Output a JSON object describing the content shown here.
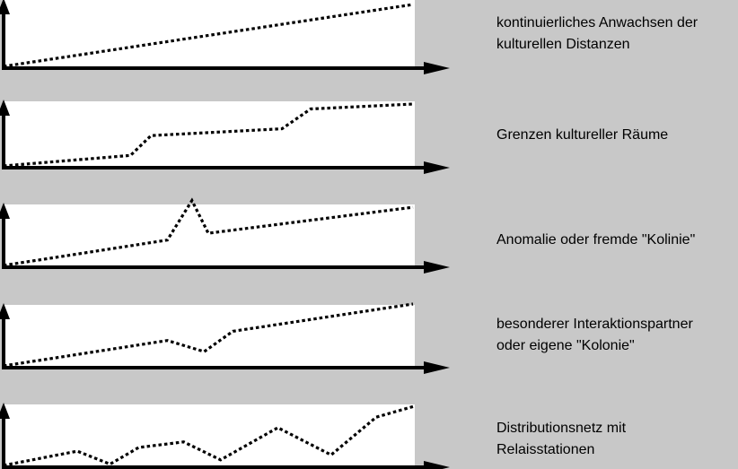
{
  "panels": [
    {
      "caption_lines": [
        "kontinuierliches Anwachsen der",
        "kulturellen Distanzen"
      ],
      "profile": [
        [
          0,
          0
        ],
        [
          1,
          1
        ]
      ]
    },
    {
      "caption_lines": [
        "Grenzen kultureller Räume"
      ],
      "profile": [
        [
          0,
          0
        ],
        [
          0.31,
          0.17
        ],
        [
          0.36,
          0.49
        ],
        [
          0.68,
          0.6
        ],
        [
          0.75,
          0.92
        ],
        [
          1,
          1
        ]
      ]
    },
    {
      "caption_lines": [
        "Anomalie oder fremde \"Kolinie\""
      ],
      "profile": [
        [
          0,
          0
        ],
        [
          0.4,
          0.41
        ],
        [
          0.46,
          1.05
        ],
        [
          0.5,
          0.52
        ],
        [
          1,
          0.94
        ]
      ]
    },
    {
      "caption_lines": [
        "besonderer Interaktionspartner",
        "oder eigene \"Kolonie\""
      ],
      "profile": [
        [
          0,
          0
        ],
        [
          0.4,
          0.41
        ],
        [
          0.49,
          0.23
        ],
        [
          0.56,
          0.56
        ],
        [
          1,
          1
        ]
      ]
    },
    {
      "caption_lines": [
        "Distributionsnetz mit",
        "Relaisstationen"
      ],
      "profile": [
        [
          0,
          0
        ],
        [
          0.18,
          0.23
        ],
        [
          0.26,
          0.02
        ],
        [
          0.33,
          0.29
        ],
        [
          0.44,
          0.38
        ],
        [
          0.53,
          0.09
        ],
        [
          0.67,
          0.61
        ],
        [
          0.8,
          0.17
        ],
        [
          0.91,
          0.78
        ],
        [
          1,
          0.95
        ]
      ]
    }
  ],
  "colors": {
    "background": "#c8c8c8",
    "panel": "#ffffff",
    "ink": "#000000"
  }
}
